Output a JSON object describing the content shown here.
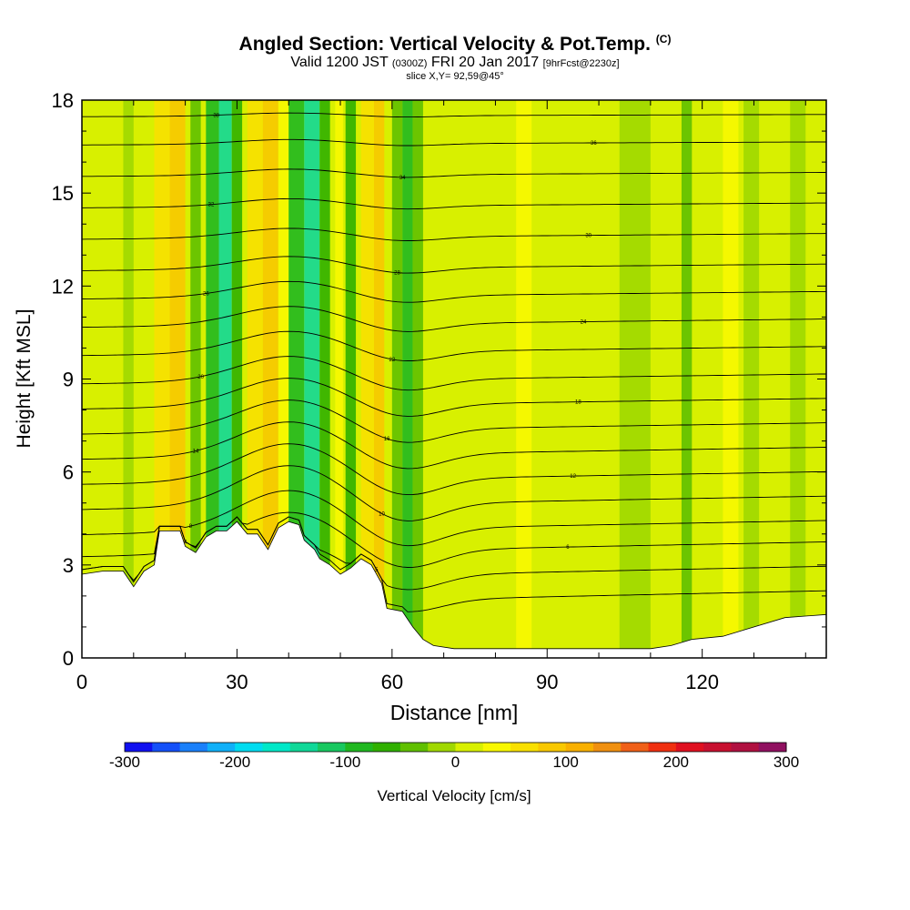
{
  "header": {
    "title": "Angled Section: Vertical Velocity & Pot.Temp.",
    "title_units": "(C)",
    "valid_prefix": "Valid 1200 JST",
    "valid_utc": "(0300Z)",
    "valid_date": "FRI 20 Jan 2017",
    "forecast": "[9hrFcst@2230z]",
    "slice": "slice X,Y= 92,59@45°"
  },
  "chart_data": {
    "type": "heatmap",
    "xlabel": "Distance [nm]",
    "ylabel": "Height [Kft MSL]",
    "x_range": [
      0,
      144
    ],
    "y_range": [
      0,
      18
    ],
    "x_ticks": [
      0,
      30,
      60,
      90,
      120
    ],
    "y_ticks": [
      0,
      3,
      6,
      9,
      12,
      15,
      18
    ],
    "colorbar": {
      "label": "Vertical Velocity [cm/s]",
      "min": -300,
      "max": 300,
      "step": 25,
      "ticks": [
        -300,
        -200,
        -100,
        0,
        100,
        200,
        300
      ],
      "colors": [
        "#1010f0",
        "#1450f8",
        "#1a80fa",
        "#10b0f8",
        "#00dcf0",
        "#00e8c8",
        "#10d898",
        "#18c860",
        "#20b820",
        "#30b000",
        "#60c000",
        "#a0d800",
        "#d8f000",
        "#f8f800",
        "#f8e000",
        "#f8c800",
        "#f8b000",
        "#f09010",
        "#f06018",
        "#f03010",
        "#e01020",
        "#c81030",
        "#b01040",
        "#901060"
      ]
    },
    "terrain_kft": [
      [
        0,
        2.7
      ],
      [
        4,
        2.8
      ],
      [
        8,
        2.8
      ],
      [
        10,
        2.3
      ],
      [
        12,
        2.8
      ],
      [
        14,
        3.0
      ],
      [
        15,
        4.1
      ],
      [
        19,
        4.1
      ],
      [
        20,
        3.6
      ],
      [
        22,
        3.4
      ],
      [
        24,
        3.9
      ],
      [
        26,
        4.1
      ],
      [
        28,
        4.1
      ],
      [
        30,
        4.4
      ],
      [
        32,
        4.0
      ],
      [
        34,
        4.0
      ],
      [
        36,
        3.5
      ],
      [
        38,
        4.2
      ],
      [
        40,
        4.4
      ],
      [
        42,
        4.3
      ],
      [
        43,
        3.8
      ],
      [
        45,
        3.5
      ],
      [
        46,
        3.2
      ],
      [
        48,
        3.0
      ],
      [
        50,
        2.7
      ],
      [
        52,
        2.9
      ],
      [
        54,
        3.2
      ],
      [
        56,
        3.0
      ],
      [
        58,
        2.4
      ],
      [
        59,
        1.6
      ],
      [
        62,
        1.5
      ],
      [
        64,
        1.0
      ],
      [
        66,
        0.6
      ],
      [
        68,
        0.4
      ],
      [
        72,
        0.3
      ],
      [
        90,
        0.3
      ],
      [
        110,
        0.3
      ],
      [
        114,
        0.4
      ],
      [
        118,
        0.6
      ],
      [
        124,
        0.7
      ],
      [
        128,
        0.9
      ],
      [
        136,
        1.3
      ],
      [
        144,
        1.4
      ]
    ],
    "velocity_bands": [
      {
        "x": 4,
        "w": 3,
        "value": 12
      },
      {
        "x": 8,
        "w": 2,
        "value": -25
      },
      {
        "x": 14,
        "w": 3,
        "value": 50
      },
      {
        "x": 17,
        "w": 3,
        "value": 75
      },
      {
        "x": 21,
        "w": 2,
        "value": -40
      },
      {
        "x": 24,
        "w": 2.5,
        "value": -90
      },
      {
        "x": 26.5,
        "w": 2.5,
        "value": -130
      },
      {
        "x": 29,
        "w": 2,
        "value": -60
      },
      {
        "x": 32,
        "w": 3,
        "value": 60
      },
      {
        "x": 35,
        "w": 3,
        "value": 90
      },
      {
        "x": 38,
        "w": 2,
        "value": 25
      },
      {
        "x": 40,
        "w": 3,
        "value": -80
      },
      {
        "x": 43,
        "w": 3,
        "value": -130
      },
      {
        "x": 46,
        "w": 2,
        "value": -60
      },
      {
        "x": 49,
        "w": 1.5,
        "value": 30
      },
      {
        "x": 51,
        "w": 2,
        "value": -60
      },
      {
        "x": 54,
        "w": 2.5,
        "value": 60
      },
      {
        "x": 56.5,
        "w": 2,
        "value": 90
      },
      {
        "x": 60,
        "w": 2,
        "value": -50
      },
      {
        "x": 62,
        "w": 2,
        "value": -80
      },
      {
        "x": 64,
        "w": 2,
        "value": -30
      },
      {
        "x": 70,
        "w": 8,
        "value": 10
      },
      {
        "x": 84,
        "w": 3,
        "value": 35
      },
      {
        "x": 90,
        "w": 8,
        "value": 10
      },
      {
        "x": 100,
        "w": 2,
        "value": 20
      },
      {
        "x": 104,
        "w": 6,
        "value": -15
      },
      {
        "x": 116,
        "w": 2,
        "value": -50
      },
      {
        "x": 124,
        "w": 3,
        "value": 40
      },
      {
        "x": 128,
        "w": 3,
        "value": -15
      },
      {
        "x": 137,
        "w": 3,
        "value": -20
      }
    ],
    "theta_contours": [
      {
        "label": "4",
        "y": 1.9,
        "ridge": 0.9
      },
      {
        "label": "5",
        "y": 2.7,
        "ridge": 1.1
      },
      {
        "label": "6",
        "y": 3.5,
        "ridge": 1.3
      },
      {
        "label": "8",
        "y": 4.2,
        "ridge": 1.3
      },
      {
        "label": "10",
        "y": 5.0,
        "ridge": 1.3
      },
      {
        "label": "12",
        "y": 5.8,
        "ridge": 1.2
      },
      {
        "label": "14",
        "y": 6.6,
        "ridge": 1.1
      },
      {
        "label": "16",
        "y": 7.4,
        "ridge": 1.0
      },
      {
        "label": "18",
        "y": 8.2,
        "ridge": 0.9
      },
      {
        "label": "20",
        "y": 9.0,
        "ridge": 0.8
      },
      {
        "label": "22",
        "y": 9.9,
        "ridge": 0.7
      },
      {
        "label": "24",
        "y": 10.8,
        "ridge": 0.6
      },
      {
        "label": "26",
        "y": 11.7,
        "ridge": 0.5
      },
      {
        "label": "28",
        "y": 12.6,
        "ridge": 0.4
      },
      {
        "label": "30",
        "y": 13.6,
        "ridge": 0.3
      },
      {
        "label": "32",
        "y": 14.6,
        "ridge": 0.25
      },
      {
        "label": "34",
        "y": 15.6,
        "ridge": 0.2
      },
      {
        "label": "36",
        "y": 16.6,
        "ridge": 0.15
      },
      {
        "label": "38",
        "y": 17.5,
        "ridge": 0.1
      }
    ]
  }
}
